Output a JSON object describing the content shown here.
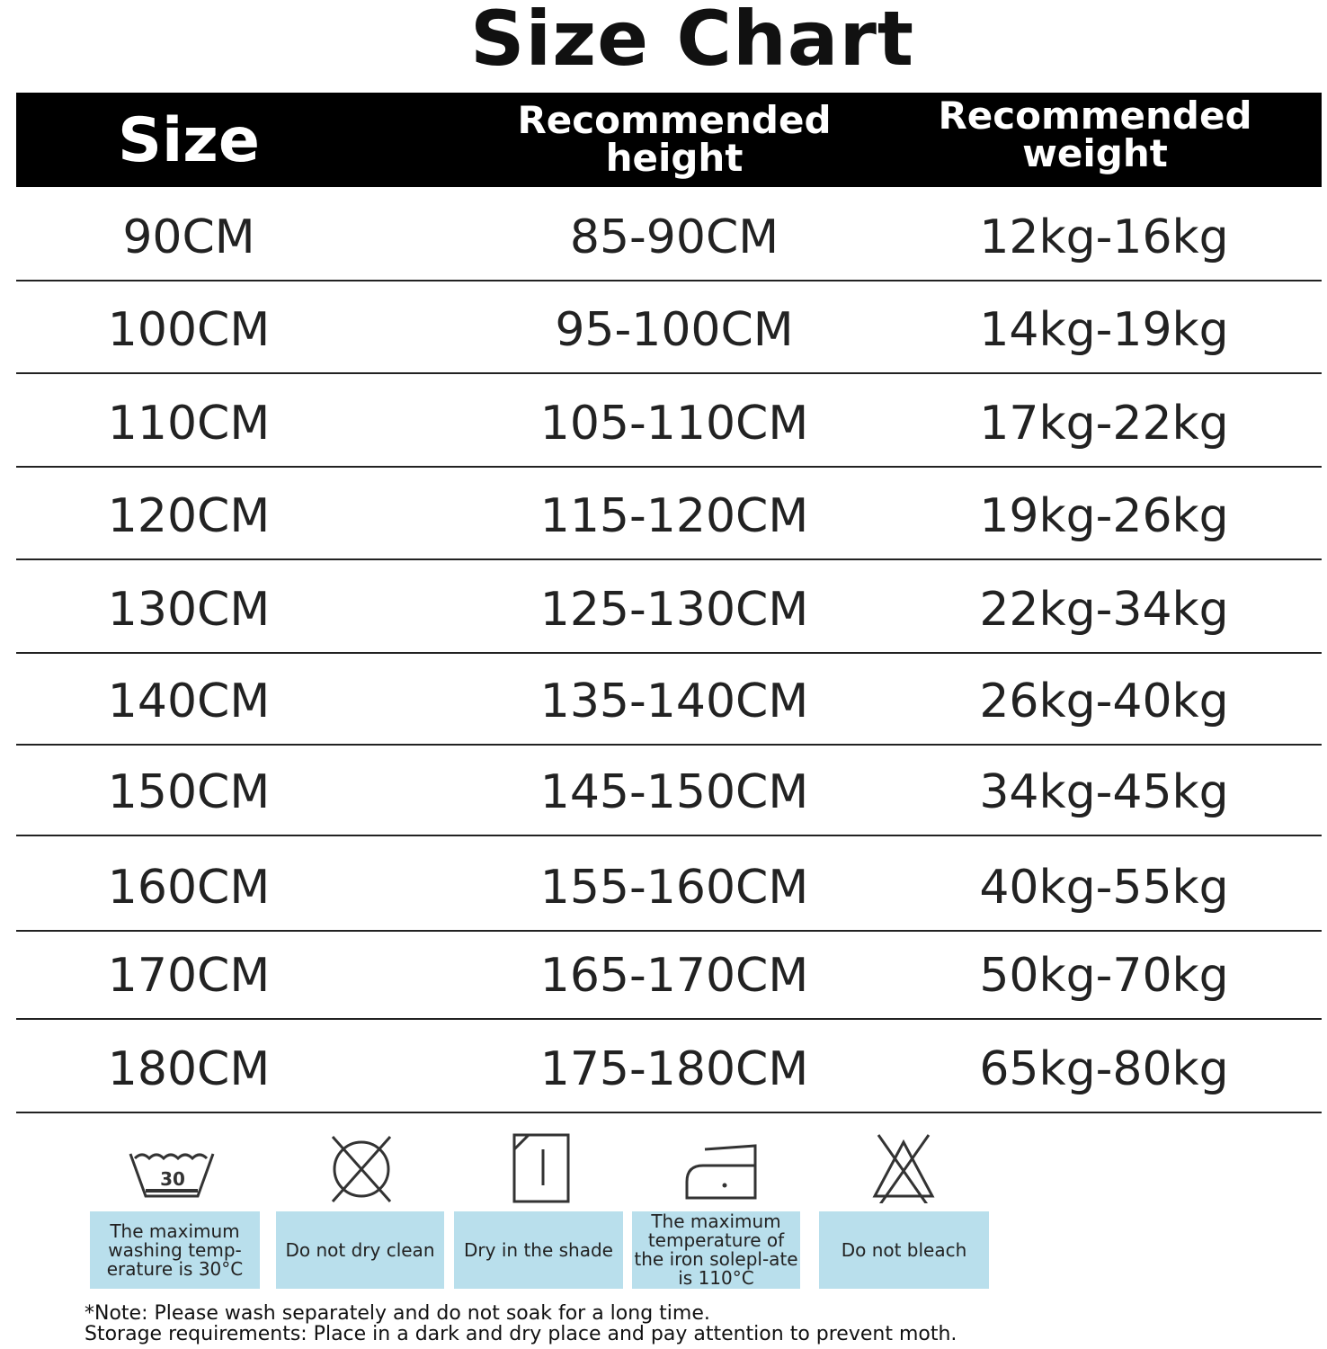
{
  "title": "Size Chart",
  "headers": {
    "size": "Size",
    "height": "Recommended height",
    "weight": "Recommended weight"
  },
  "rows": [
    {
      "size": "90CM",
      "height": "85-90CM",
      "weight": "12kg-16kg"
    },
    {
      "size": "100CM",
      "height": "95-100CM",
      "weight": "14kg-19kg"
    },
    {
      "size": "110CM",
      "height": "105-110CM",
      "weight": "17kg-22kg"
    },
    {
      "size": "120CM",
      "height": "115-120CM",
      "weight": "19kg-26kg"
    },
    {
      "size": "130CM",
      "height": "125-130CM",
      "weight": "22kg-34kg"
    },
    {
      "size": "140CM",
      "height": "135-140CM",
      "weight": "26kg-40kg"
    },
    {
      "size": "150CM",
      "height": "145-150CM",
      "weight": "34kg-45kg"
    },
    {
      "size": "160CM",
      "height": "155-160CM",
      "weight": "40kg-55kg"
    },
    {
      "size": "170CM",
      "height": "165-170CM",
      "weight": "50kg-70kg"
    },
    {
      "size": "180CM",
      "height": "175-180CM",
      "weight": "65kg-80kg"
    }
  ],
  "care": [
    {
      "icon": "wash-30-icon",
      "label": "The maximum washing temp-erature is 30°C",
      "temp": "30"
    },
    {
      "icon": "no-dry-clean-icon",
      "label": "Do not dry clean"
    },
    {
      "icon": "dry-in-shade-icon",
      "label": "Dry in the shade"
    },
    {
      "icon": "iron-low-icon",
      "label": "The maximum temperature of the iron solepl-ate is 110°C"
    },
    {
      "icon": "no-bleach-icon",
      "label": "Do not bleach"
    }
  ],
  "notes": [
    "*Note: Please wash separately and do not soak for a long time.",
    "Storage requirements: Place in a dark and dry place and pay attention to prevent moth."
  ],
  "colors": {
    "header_bg": "#000000",
    "care_box": "#b9dfec"
  }
}
